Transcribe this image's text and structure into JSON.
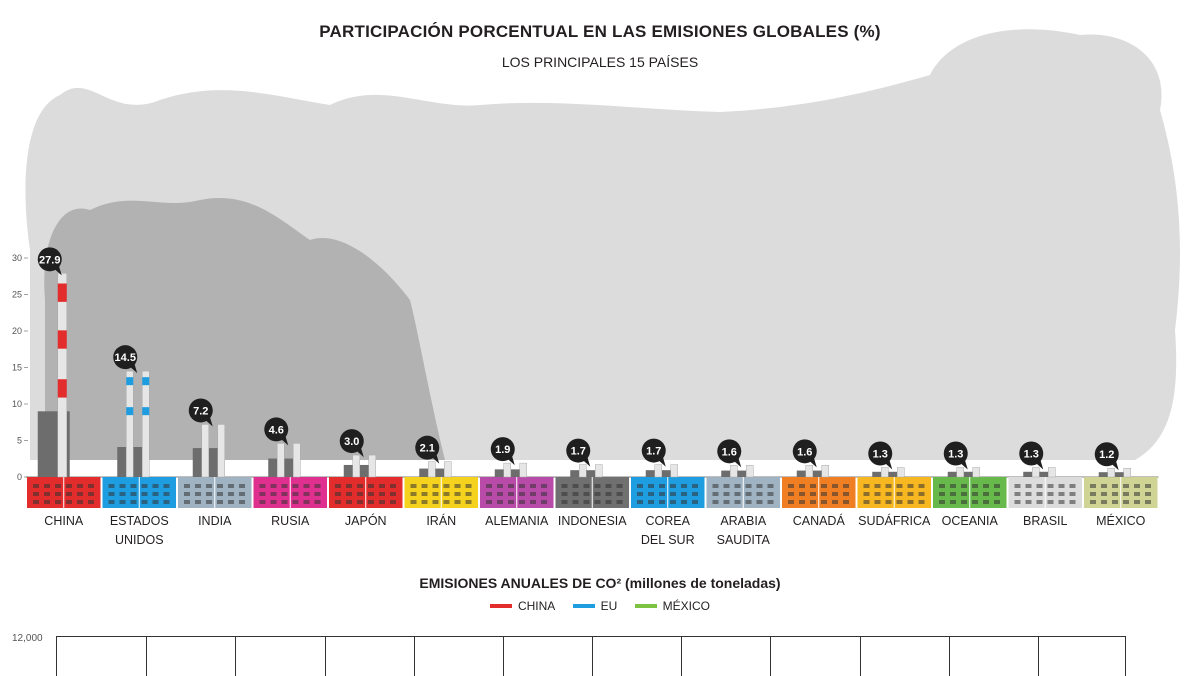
{
  "title": "PARTICIPACIÓN PORCENTUAL EN LAS EMISIONES GLOBALES (%)",
  "subtitle": "LOS PRINCIPALES 15 PAÍSES",
  "chart_data": [
    {
      "type": "bar",
      "title": "PARTICIPACIÓN PORCENTUAL EN LAS EMISIONES GLOBALES (%)",
      "subtitle": "LOS PRINCIPALES 15 PAÍSES",
      "categories": [
        "CHINA",
        "ESTADOS UNIDOS",
        "INDIA",
        "RUSIA",
        "JAPÓN",
        "IRÁN",
        "ALEMANIA",
        "INDONESIA",
        "COREA DEL SUR",
        "ARABIA SAUDITA",
        "CANADÁ",
        "SUDÁFRICA",
        "OCEANIA",
        "BRASIL",
        "MÉXICO"
      ],
      "category_lines": [
        [
          "CHINA"
        ],
        [
          "ESTADOS",
          "UNIDOS"
        ],
        [
          "INDIA"
        ],
        [
          "RUSIA"
        ],
        [
          "JAPÓN"
        ],
        [
          "IRÁN"
        ],
        [
          "ALEMANIA"
        ],
        [
          "INDONESIA"
        ],
        [
          "COREA",
          "DEL SUR"
        ],
        [
          "ARABIA",
          "SAUDITA"
        ],
        [
          "CANADÁ"
        ],
        [
          "SUDÁFRICA"
        ],
        [
          "OCEANIA"
        ],
        [
          "BRASIL"
        ],
        [
          "MÉXICO"
        ]
      ],
      "values": [
        27.9,
        14.5,
        7.2,
        4.6,
        3.0,
        2.1,
        1.9,
        1.7,
        1.7,
        1.6,
        1.6,
        1.3,
        1.3,
        1.3,
        1.2
      ],
      "value_labels": [
        "27.9",
        "14.5",
        "7.2",
        "4.6",
        "3.0",
        "2.1",
        "1.9",
        "1.7",
        "1.7",
        "1.6",
        "1.6",
        "1.3",
        "1.3",
        "1.3",
        "1.2"
      ],
      "colors": [
        "#e32c2c",
        "#1e9ee0",
        "#9fb3c3",
        "#e0308f",
        "#e32c2c",
        "#f5d21e",
        "#b84aa8",
        "#707070",
        "#1e9ee0",
        "#9fb3c3",
        "#f07f24",
        "#f7b720",
        "#66b94a",
        "#dcdcdc",
        "#cfd394"
      ],
      "yticks": [
        "0",
        "5",
        "10",
        "15",
        "20",
        "25",
        "30"
      ],
      "ylim": [
        0,
        30
      ],
      "grid": false
    },
    {
      "type": "line",
      "title": "EMISIONES ANUALES DE CO² (millones de toneladas)",
      "series": [
        {
          "name": "CHINA",
          "color": "#e32c2c"
        },
        {
          "name": "EU",
          "color": "#1e9ee0"
        },
        {
          "name": "MÉXICO",
          "color": "#7ec242"
        }
      ],
      "yticks": [
        "12,000"
      ],
      "legend_position": "top-center"
    }
  ]
}
